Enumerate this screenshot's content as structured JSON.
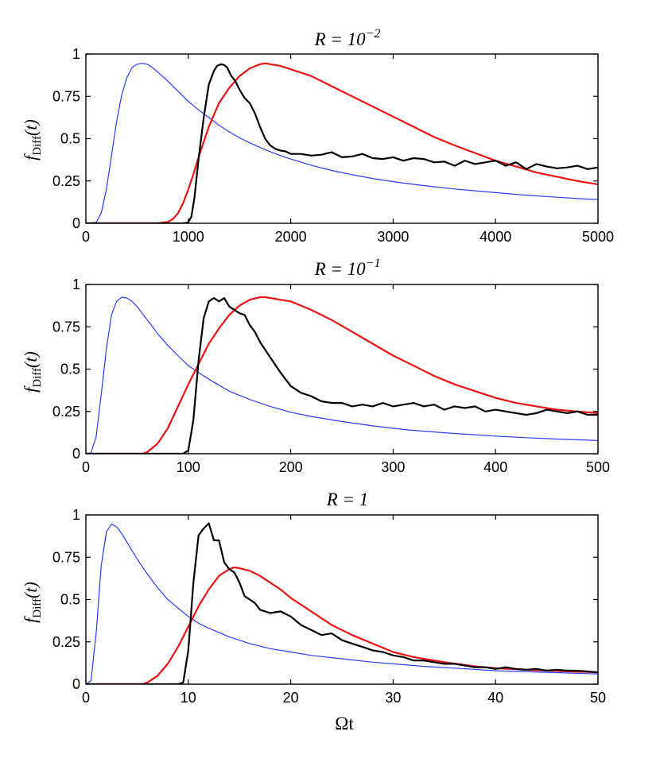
{
  "chart_data": [
    {
      "type": "line",
      "title_prefix": "R = 10",
      "title_exponent": "−2",
      "ylabel": {
        "main": "f",
        "sub": "Diff",
        "arg": "(t)"
      },
      "xlabel": "",
      "xlim": [
        0,
        5000
      ],
      "ylim": [
        0,
        1
      ],
      "xticks": [
        0,
        1000,
        2000,
        3000,
        4000,
        5000
      ],
      "xticklabels": [
        "0",
        "1000",
        "2000",
        "3000",
        "4000",
        "5000"
      ],
      "yticks": [
        0,
        0.25,
        0.5,
        0.75,
        1
      ],
      "yticklabels": [
        "0",
        "0.25",
        "0.5",
        "0.75",
        "1"
      ],
      "series": [
        {
          "name": "blue",
          "color": "#2b3bff",
          "width": 1.2,
          "x": [
            0,
            100,
            150,
            200,
            250,
            300,
            350,
            400,
            450,
            500,
            550,
            600,
            650,
            700,
            800,
            900,
            1000,
            1100,
            1200,
            1300,
            1400,
            1500,
            1600,
            1700,
            1800,
            1900,
            2000,
            2200,
            2400,
            2600,
            2800,
            3000,
            3200,
            3400,
            3600,
            3800,
            4000,
            4200,
            4400,
            4600,
            4800,
            5000
          ],
          "y": [
            0,
            0.005,
            0.06,
            0.2,
            0.4,
            0.6,
            0.76,
            0.86,
            0.92,
            0.94,
            0.945,
            0.94,
            0.92,
            0.895,
            0.84,
            0.78,
            0.72,
            0.67,
            0.625,
            0.58,
            0.54,
            0.505,
            0.475,
            0.448,
            0.423,
            0.4,
            0.38,
            0.343,
            0.312,
            0.287,
            0.265,
            0.246,
            0.23,
            0.216,
            0.203,
            0.192,
            0.181,
            0.171,
            0.162,
            0.154,
            0.146,
            0.14
          ]
        },
        {
          "name": "red",
          "color": "#ee1111",
          "width": 2.2,
          "x": [
            0,
            700,
            800,
            850,
            900,
            950,
            1000,
            1050,
            1100,
            1150,
            1200,
            1250,
            1300,
            1400,
            1500,
            1600,
            1700,
            1750,
            1800,
            1900,
            2000,
            2200,
            2400,
            2600,
            2800,
            3000,
            3200,
            3400,
            3600,
            3800,
            4000,
            4200,
            4400,
            4600,
            4800,
            5000
          ],
          "y": [
            0,
            0,
            0.008,
            0.025,
            0.06,
            0.12,
            0.2,
            0.29,
            0.39,
            0.48,
            0.57,
            0.64,
            0.71,
            0.8,
            0.87,
            0.915,
            0.94,
            0.945,
            0.94,
            0.93,
            0.91,
            0.87,
            0.81,
            0.75,
            0.69,
            0.63,
            0.57,
            0.51,
            0.46,
            0.415,
            0.37,
            0.335,
            0.3,
            0.275,
            0.25,
            0.23
          ]
        },
        {
          "name": "black",
          "color": "#000000",
          "width": 2.2,
          "x": [
            0,
            950,
            1000,
            1030,
            1060,
            1100,
            1150,
            1200,
            1250,
            1280,
            1320,
            1350,
            1380,
            1420,
            1460,
            1500,
            1550,
            1600,
            1650,
            1700,
            1750,
            1800,
            1850,
            1900,
            1950,
            2000,
            2100,
            2200,
            2300,
            2400,
            2500,
            2600,
            2700,
            2800,
            2900,
            3000,
            3100,
            3200,
            3300,
            3400,
            3500,
            3600,
            3700,
            3800,
            3900,
            4000,
            4100,
            4200,
            4300,
            4400,
            4500,
            4600,
            4700,
            4800,
            4900,
            5000
          ],
          "y": [
            0,
            0,
            0.005,
            0.04,
            0.15,
            0.38,
            0.62,
            0.82,
            0.9,
            0.93,
            0.94,
            0.935,
            0.92,
            0.87,
            0.84,
            0.79,
            0.74,
            0.71,
            0.65,
            0.57,
            0.5,
            0.46,
            0.44,
            0.43,
            0.425,
            0.41,
            0.41,
            0.4,
            0.405,
            0.42,
            0.39,
            0.395,
            0.41,
            0.385,
            0.38,
            0.39,
            0.37,
            0.385,
            0.38,
            0.36,
            0.365,
            0.34,
            0.37,
            0.35,
            0.36,
            0.37,
            0.34,
            0.36,
            0.32,
            0.35,
            0.335,
            0.325,
            0.33,
            0.34,
            0.32,
            0.33
          ]
        }
      ]
    },
    {
      "type": "line",
      "title_prefix": "R = 10",
      "title_exponent": "−1",
      "ylabel": {
        "main": "f",
        "sub": "Diff",
        "arg": "(t)"
      },
      "xlabel": "",
      "xlim": [
        0,
        500
      ],
      "ylim": [
        0,
        1
      ],
      "xticks": [
        0,
        100,
        200,
        300,
        400,
        500
      ],
      "xticklabels": [
        "0",
        "100",
        "200",
        "300",
        "400",
        "500"
      ],
      "yticks": [
        0,
        0.25,
        0.5,
        0.75,
        1
      ],
      "yticklabels": [
        "0",
        "0.25",
        "0.5",
        "0.75",
        "1"
      ],
      "series": [
        {
          "name": "blue",
          "color": "#2b3bff",
          "width": 1.2,
          "x": [
            0,
            5,
            10,
            15,
            20,
            25,
            30,
            35,
            40,
            45,
            50,
            60,
            70,
            80,
            90,
            100,
            110,
            120,
            140,
            160,
            180,
            200,
            220,
            250,
            280,
            300,
            320,
            350,
            380,
            400,
            430,
            460,
            500
          ],
          "y": [
            0,
            0.005,
            0.1,
            0.35,
            0.62,
            0.82,
            0.9,
            0.925,
            0.92,
            0.9,
            0.87,
            0.79,
            0.71,
            0.64,
            0.58,
            0.52,
            0.48,
            0.44,
            0.37,
            0.32,
            0.28,
            0.245,
            0.22,
            0.19,
            0.165,
            0.15,
            0.138,
            0.124,
            0.112,
            0.104,
            0.095,
            0.087,
            0.078
          ]
        },
        {
          "name": "red",
          "color": "#ee1111",
          "width": 2.2,
          "x": [
            0,
            55,
            60,
            70,
            80,
            90,
            100,
            110,
            120,
            130,
            140,
            150,
            160,
            170,
            175,
            180,
            190,
            200,
            220,
            240,
            260,
            280,
            300,
            320,
            340,
            360,
            380,
            400,
            420,
            440,
            460,
            480,
            500
          ],
          "y": [
            0,
            0,
            0.01,
            0.06,
            0.15,
            0.28,
            0.41,
            0.53,
            0.65,
            0.74,
            0.82,
            0.875,
            0.91,
            0.925,
            0.925,
            0.92,
            0.91,
            0.9,
            0.85,
            0.79,
            0.72,
            0.65,
            0.58,
            0.52,
            0.46,
            0.41,
            0.37,
            0.33,
            0.3,
            0.28,
            0.26,
            0.25,
            0.24
          ]
        },
        {
          "name": "black",
          "color": "#000000",
          "width": 2.2,
          "x": [
            0,
            95,
            100,
            105,
            110,
            115,
            120,
            125,
            130,
            135,
            140,
            145,
            150,
            155,
            160,
            165,
            170,
            180,
            190,
            200,
            210,
            220,
            230,
            240,
            250,
            260,
            270,
            280,
            290,
            300,
            310,
            320,
            330,
            340,
            350,
            360,
            370,
            380,
            390,
            400,
            410,
            420,
            430,
            440,
            450,
            460,
            470,
            480,
            490,
            500
          ],
          "y": [
            0,
            0,
            0.02,
            0.2,
            0.55,
            0.8,
            0.9,
            0.92,
            0.9,
            0.92,
            0.87,
            0.85,
            0.83,
            0.82,
            0.76,
            0.72,
            0.66,
            0.57,
            0.48,
            0.4,
            0.36,
            0.34,
            0.31,
            0.3,
            0.3,
            0.28,
            0.29,
            0.28,
            0.3,
            0.28,
            0.29,
            0.3,
            0.28,
            0.29,
            0.26,
            0.28,
            0.27,
            0.28,
            0.25,
            0.26,
            0.25,
            0.24,
            0.23,
            0.24,
            0.26,
            0.25,
            0.24,
            0.25,
            0.23,
            0.23
          ]
        }
      ]
    },
    {
      "type": "line",
      "title_prefix": "R = 1",
      "title_exponent": "",
      "ylabel": {
        "main": "f",
        "sub": "Diff",
        "arg": "(t)"
      },
      "xlabel": "Ωt",
      "xlim": [
        0,
        50
      ],
      "ylim": [
        0,
        1
      ],
      "xticks": [
        0,
        10,
        20,
        30,
        40,
        50
      ],
      "xticklabels": [
        "0",
        "10",
        "20",
        "30",
        "40",
        "50"
      ],
      "yticks": [
        0,
        0.25,
        0.5,
        0.75,
        1
      ],
      "yticklabels": [
        "0",
        "0.25",
        "0.5",
        "0.75",
        "1"
      ],
      "series": [
        {
          "name": "blue",
          "color": "#2b3bff",
          "width": 1.2,
          "x": [
            0,
            0.5,
            1,
            1.5,
            2,
            2.5,
            3,
            3.5,
            4,
            5,
            6,
            7,
            8,
            9,
            10,
            11,
            12,
            14,
            16,
            18,
            20,
            22,
            25,
            28,
            30,
            33,
            36,
            40,
            45,
            50
          ],
          "y": [
            0,
            0.02,
            0.3,
            0.7,
            0.9,
            0.945,
            0.93,
            0.89,
            0.84,
            0.74,
            0.65,
            0.57,
            0.5,
            0.45,
            0.4,
            0.36,
            0.33,
            0.28,
            0.24,
            0.21,
            0.19,
            0.17,
            0.15,
            0.13,
            0.12,
            0.105,
            0.095,
            0.08,
            0.07,
            0.06
          ]
        },
        {
          "name": "red",
          "color": "#ee1111",
          "width": 2.2,
          "x": [
            0,
            5.5,
            6,
            7,
            8,
            9,
            10,
            11,
            12,
            13,
            14,
            14.5,
            15,
            16,
            17,
            18,
            19,
            20,
            22,
            24,
            26,
            28,
            30,
            32,
            35,
            38,
            40,
            43,
            46,
            50
          ],
          "y": [
            0,
            0,
            0.01,
            0.05,
            0.12,
            0.22,
            0.34,
            0.46,
            0.56,
            0.64,
            0.68,
            0.69,
            0.685,
            0.67,
            0.64,
            0.6,
            0.56,
            0.51,
            0.43,
            0.35,
            0.29,
            0.24,
            0.19,
            0.16,
            0.13,
            0.105,
            0.095,
            0.085,
            0.078,
            0.07
          ]
        },
        {
          "name": "black",
          "color": "#000000",
          "width": 2.2,
          "x": [
            0,
            9,
            9.5,
            10,
            10.5,
            11,
            11.5,
            12,
            12.5,
            13,
            13.5,
            14,
            14.5,
            15,
            15.5,
            16,
            16.5,
            17,
            18,
            19,
            20,
            21,
            22,
            23,
            24,
            25,
            26,
            27,
            28,
            29,
            30,
            31,
            32,
            33,
            34,
            35,
            36,
            37,
            38,
            39,
            40,
            41,
            42,
            43,
            44,
            45,
            46,
            47,
            48,
            49,
            50
          ],
          "y": [
            0,
            0,
            0.01,
            0.2,
            0.6,
            0.88,
            0.92,
            0.95,
            0.85,
            0.85,
            0.72,
            0.68,
            0.66,
            0.6,
            0.52,
            0.5,
            0.48,
            0.44,
            0.42,
            0.43,
            0.4,
            0.35,
            0.32,
            0.29,
            0.3,
            0.26,
            0.24,
            0.22,
            0.2,
            0.19,
            0.17,
            0.16,
            0.14,
            0.14,
            0.13,
            0.12,
            0.12,
            0.11,
            0.1,
            0.1,
            0.09,
            0.1,
            0.09,
            0.085,
            0.09,
            0.08,
            0.085,
            0.08,
            0.08,
            0.075,
            0.07
          ]
        }
      ]
    }
  ]
}
